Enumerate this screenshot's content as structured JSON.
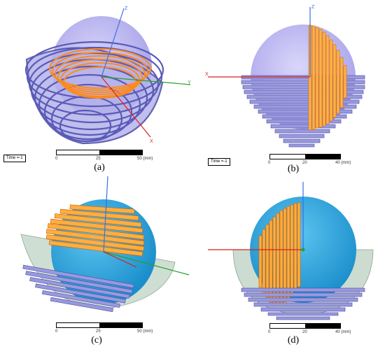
{
  "panels": [
    {
      "caption": "(a)",
      "time_label": "Time =-1",
      "scale": [
        "0",
        "25",
        "50 (mm)"
      ],
      "axes": [
        "Z",
        "Y",
        "X"
      ]
    },
    {
      "caption": "(b)",
      "time_label": "Time =-1",
      "scale": [
        "0",
        "20",
        "40 (mm)"
      ],
      "axes": [
        "Z",
        "X"
      ]
    },
    {
      "caption": "(c)",
      "scale": [
        "0",
        "25",
        "50 (mm)"
      ]
    },
    {
      "caption": "(d)",
      "scale": [
        "0",
        "20",
        "40 (mm)"
      ]
    }
  ],
  "colors": {
    "sphere_purple": "#b3aef0",
    "sphere_blue": "#29a3dc",
    "coil_blue": "#8080d0",
    "coil_orange": "#ff8a1c",
    "shield_green": "#c7d9cc",
    "axis_z": "#3a6ee8",
    "axis_y": "#2aa02a",
    "axis_x": "#e01e1e"
  }
}
